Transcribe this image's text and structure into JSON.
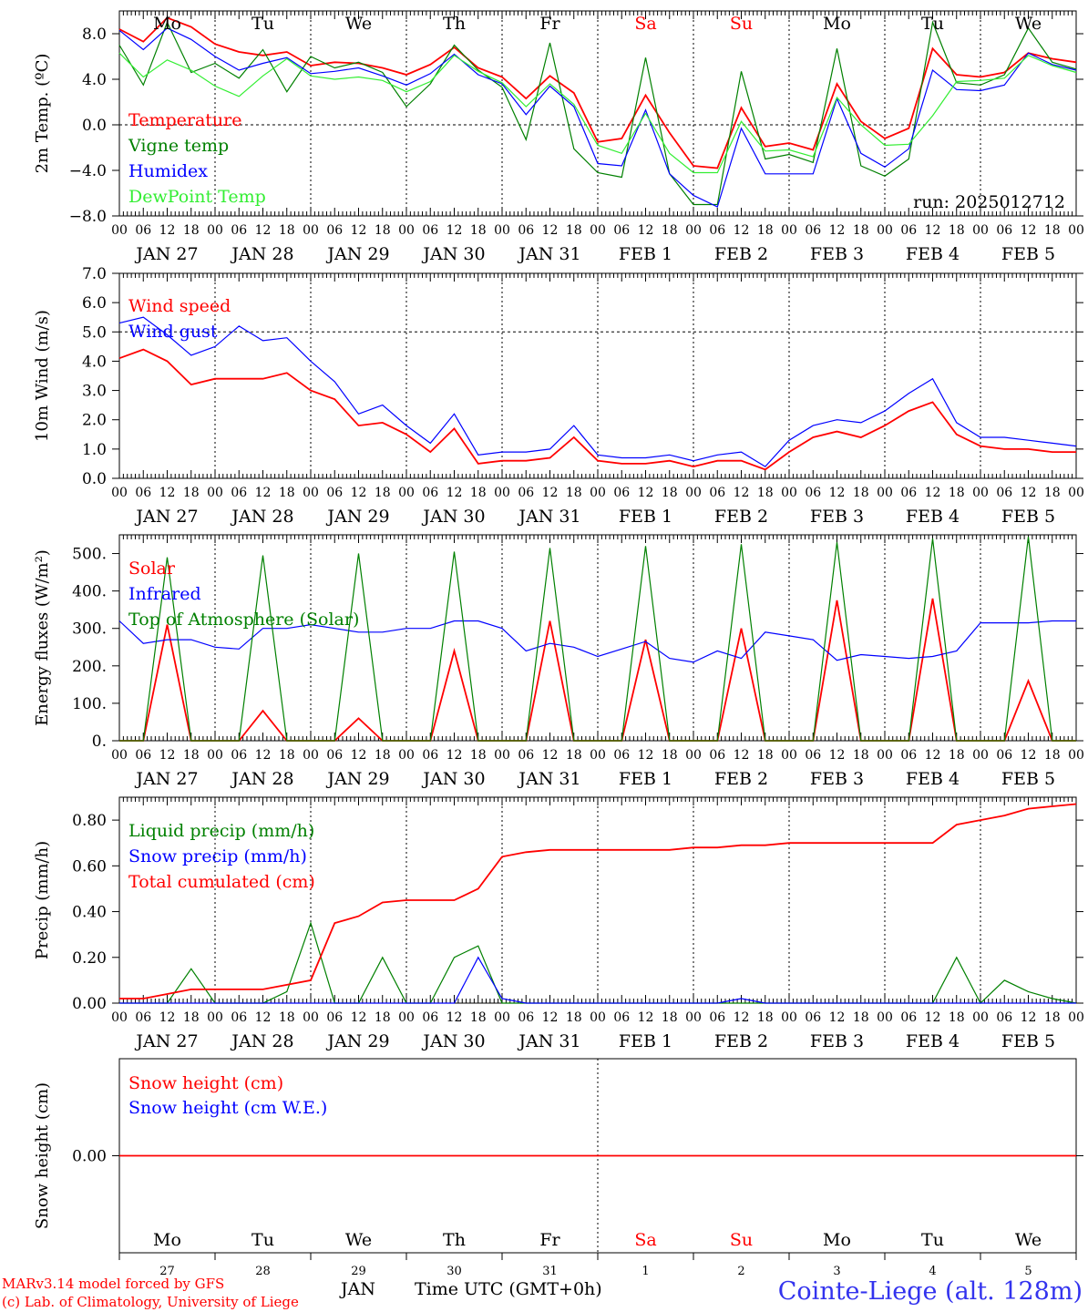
{
  "footer": {
    "credit_line1": "MARv3.14 model forced by GFS",
    "credit_line2": "(c) Lab. of Climatology, University of Liege",
    "station": "Cointe-Liege (alt. 128m)",
    "x_axis_title": "Time UTC (GMT+0h)",
    "month_label": "JAN"
  },
  "colors": {
    "red": "#ff0000",
    "green": "#008000",
    "blue": "#0000ff",
    "lightgreen": "#33ee33",
    "weekend": "#ff0000"
  },
  "days": {
    "weekday_labels": [
      "Mo",
      "Tu",
      "We",
      "Th",
      "Fr",
      "Sa",
      "Su",
      "Mo",
      "Tu",
      "We"
    ],
    "weekend_flags": [
      false,
      false,
      false,
      false,
      false,
      true,
      true,
      false,
      false,
      false
    ],
    "date_labels": [
      "JAN 27",
      "JAN 28",
      "JAN 29",
      "JAN 30",
      "JAN 31",
      "FEB  1",
      "FEB  2",
      "FEB  3",
      "FEB  4",
      "FEB  5"
    ],
    "day_numbers": [
      "27",
      "28",
      "29",
      "30",
      "31",
      "1",
      "2",
      "3",
      "4",
      "5"
    ],
    "hour_ticks": [
      "00",
      "06",
      "12",
      "18"
    ],
    "final_tick": "00"
  },
  "chart_data": [
    {
      "type": "line",
      "ylabel": "2m Temp. (ºC)",
      "ylim": [
        -8,
        10
      ],
      "yticks": [
        "8.0",
        "4.0",
        "0.0",
        "−4.0",
        "−8.0"
      ],
      "ytick_values": [
        8,
        4,
        0,
        -4,
        -8
      ],
      "reference_line": 0,
      "annotation": "run: 2025012712",
      "weekday_header": true,
      "x_hours": [
        0,
        6,
        12,
        18,
        24,
        30,
        36,
        42,
        48,
        54,
        60,
        66,
        72,
        78,
        84,
        90,
        96,
        102,
        108,
        114,
        120,
        126,
        132,
        138,
        144,
        150,
        156,
        162,
        168,
        174,
        180,
        186,
        192,
        198,
        204,
        210,
        216,
        222,
        228,
        234,
        240
      ],
      "series": [
        {
          "name": "Temperature",
          "color": "red",
          "values": [
            8.4,
            7.3,
            9.4,
            8.6,
            7.1,
            6.4,
            6.1,
            6.4,
            5.2,
            5.5,
            5.4,
            5.0,
            4.4,
            5.3,
            6.8,
            5.0,
            4.2,
            2.3,
            4.3,
            2.8,
            -1.5,
            -1.2,
            2.6,
            -0.7,
            -3.6,
            -3.8,
            1.5,
            -1.9,
            -1.6,
            -2.2,
            3.6,
            0.3,
            -1.2,
            -0.3,
            6.7,
            4.4,
            4.2,
            4.6,
            6.3,
            5.8,
            5.5
          ]
        },
        {
          "name": "Vigne temp",
          "color": "green",
          "values": [
            7.0,
            3.5,
            9.0,
            4.6,
            5.4,
            4.1,
            6.6,
            2.9,
            6.0,
            5.0,
            5.5,
            4.6,
            1.6,
            3.6,
            7.0,
            4.8,
            3.3,
            -1.3,
            7.2,
            -2.1,
            -4.2,
            -4.6,
            5.9,
            -4.3,
            -7.0,
            -7.0,
            4.7,
            -3.0,
            -2.6,
            -3.3,
            6.7,
            -3.6,
            -4.5,
            -3.0,
            9.0,
            3.7,
            3.5,
            4.4,
            8.5,
            5.5,
            4.9
          ]
        },
        {
          "name": "Humidex",
          "color": "blue",
          "values": [
            8.3,
            6.6,
            8.5,
            7.5,
            6.0,
            4.8,
            5.4,
            5.9,
            4.5,
            4.7,
            5.0,
            4.3,
            3.5,
            4.5,
            6.2,
            4.4,
            3.6,
            0.9,
            3.4,
            1.6,
            -3.4,
            -3.6,
            1.3,
            -4.3,
            -6.2,
            -7.2,
            -0.3,
            -4.3,
            -4.3,
            -4.3,
            2.3,
            -2.5,
            -3.7,
            -2.1,
            4.8,
            3.1,
            3.0,
            3.5,
            6.3,
            5.3,
            4.8
          ]
        },
        {
          "name": "DewPoint Temp",
          "color": "lightgreen",
          "values": [
            6.3,
            4.2,
            5.7,
            4.8,
            3.4,
            2.5,
            4.3,
            5.8,
            4.3,
            4.0,
            4.2,
            3.9,
            2.9,
            3.8,
            6.1,
            4.7,
            3.7,
            1.6,
            3.6,
            1.8,
            -1.8,
            -2.5,
            1.0,
            -2.5,
            -4.2,
            -4.2,
            0.3,
            -2.3,
            -2.2,
            -2.8,
            2.4,
            0.0,
            -1.8,
            -1.7,
            0.8,
            3.8,
            3.9,
            4.1,
            6.1,
            5.2,
            4.6
          ]
        }
      ]
    },
    {
      "type": "line",
      "ylabel": "10m Wind (m/s)",
      "ylim": [
        0,
        7
      ],
      "yticks": [
        "7.0",
        "6.0",
        "5.0",
        "4.0",
        "3.0",
        "2.0",
        "1.0",
        "0.0"
      ],
      "ytick_values": [
        7,
        6,
        5,
        4,
        3,
        2,
        1,
        0
      ],
      "reference_line": 5,
      "x_hours": [
        0,
        6,
        12,
        18,
        24,
        30,
        36,
        42,
        48,
        54,
        60,
        66,
        72,
        78,
        84,
        90,
        96,
        102,
        108,
        114,
        120,
        126,
        132,
        138,
        144,
        150,
        156,
        162,
        168,
        174,
        180,
        186,
        192,
        198,
        204,
        210,
        216,
        222,
        228,
        234,
        240
      ],
      "series": [
        {
          "name": "Wind speed",
          "color": "red",
          "values": [
            4.1,
            4.4,
            4.0,
            3.2,
            3.4,
            3.4,
            3.4,
            3.6,
            3.0,
            2.7,
            1.8,
            1.9,
            1.5,
            0.9,
            1.7,
            0.5,
            0.6,
            0.6,
            0.7,
            1.4,
            0.6,
            0.5,
            0.5,
            0.6,
            0.4,
            0.6,
            0.6,
            0.3,
            0.9,
            1.4,
            1.6,
            1.4,
            1.8,
            2.3,
            2.6,
            1.5,
            1.1,
            1.0,
            1.0,
            0.9,
            0.9
          ]
        },
        {
          "name": "Wind gust",
          "color": "blue",
          "values": [
            5.3,
            5.5,
            4.9,
            4.2,
            4.5,
            5.2,
            4.7,
            4.8,
            4.0,
            3.3,
            2.2,
            2.5,
            1.8,
            1.2,
            2.2,
            0.8,
            0.9,
            0.9,
            1.0,
            1.8,
            0.8,
            0.7,
            0.7,
            0.8,
            0.6,
            0.8,
            0.9,
            0.4,
            1.3,
            1.8,
            2.0,
            1.9,
            2.3,
            2.9,
            3.4,
            1.9,
            1.4,
            1.4,
            1.3,
            1.2,
            1.1
          ]
        }
      ]
    },
    {
      "type": "line",
      "ylabel": "Energy fluxes (W/m²)",
      "ylim": [
        0,
        550
      ],
      "yticks": [
        "500.",
        "400.",
        "300.",
        "200.",
        "100.",
        "0."
      ],
      "ytick_values": [
        500,
        400,
        300,
        200,
        100,
        0
      ],
      "x_hours": [
        0,
        6,
        12,
        18,
        24,
        30,
        36,
        42,
        48,
        54,
        60,
        66,
        72,
        78,
        84,
        90,
        96,
        102,
        108,
        114,
        120,
        126,
        132,
        138,
        144,
        150,
        156,
        162,
        168,
        174,
        180,
        186,
        192,
        198,
        204,
        210,
        216,
        222,
        228,
        234,
        240
      ],
      "series": [
        {
          "name": "Solar",
          "color": "red",
          "values": [
            0,
            0,
            310,
            0,
            0,
            0,
            80,
            0,
            0,
            0,
            60,
            0,
            0,
            0,
            240,
            0,
            0,
            0,
            320,
            0,
            0,
            0,
            270,
            0,
            0,
            0,
            300,
            0,
            0,
            0,
            375,
            0,
            0,
            0,
            380,
            0,
            0,
            0,
            160,
            0,
            0
          ]
        },
        {
          "name": "Infrared",
          "color": "blue",
          "values": [
            320,
            260,
            270,
            270,
            250,
            245,
            300,
            300,
            310,
            300,
            290,
            290,
            300,
            300,
            320,
            320,
            300,
            240,
            260,
            250,
            225,
            245,
            265,
            220,
            210,
            240,
            220,
            290,
            280,
            270,
            215,
            230,
            225,
            220,
            225,
            240,
            315,
            315,
            315,
            320,
            320
          ]
        },
        {
          "name": "Top of Atmosphere (Solar)",
          "color": "green",
          "values": [
            0,
            0,
            490,
            0,
            0,
            0,
            495,
            0,
            0,
            0,
            500,
            0,
            0,
            0,
            505,
            0,
            0,
            0,
            515,
            0,
            0,
            0,
            520,
            0,
            0,
            0,
            525,
            0,
            0,
            0,
            530,
            0,
            0,
            0,
            540,
            0,
            0,
            0,
            545,
            0,
            0
          ]
        }
      ]
    },
    {
      "type": "line",
      "ylabel": "Precip (mm/h)",
      "ylim": [
        0,
        0.9
      ],
      "yticks": [
        "0.80",
        "0.60",
        "0.40",
        "0.20",
        "0.00"
      ],
      "ytick_values": [
        0.8,
        0.6,
        0.4,
        0.2,
        0
      ],
      "x_hours": [
        0,
        6,
        12,
        18,
        24,
        30,
        36,
        42,
        48,
        54,
        60,
        66,
        72,
        78,
        84,
        90,
        96,
        102,
        108,
        114,
        120,
        126,
        132,
        138,
        144,
        150,
        156,
        162,
        168,
        174,
        180,
        186,
        192,
        198,
        204,
        210,
        216,
        222,
        228,
        234,
        240
      ],
      "series": [
        {
          "name": "Liquid precip (mm/h)",
          "color": "green",
          "values": [
            0.0,
            0.0,
            0.0,
            0.15,
            0.0,
            0.0,
            0.0,
            0.05,
            0.35,
            0.0,
            0.0,
            0.2,
            0.0,
            0.0,
            0.2,
            0.25,
            0.0,
            0.0,
            0.0,
            0.0,
            0.0,
            0.0,
            0.0,
            0.0,
            0.0,
            0.0,
            0.0,
            0.0,
            0.0,
            0.0,
            0.0,
            0.0,
            0.0,
            0.0,
            0.0,
            0.2,
            0.0,
            0.1,
            0.05,
            0.02,
            0.0
          ]
        },
        {
          "name": "Snow precip (mm/h)",
          "color": "blue",
          "values": [
            0.0,
            0.0,
            0.0,
            0.0,
            0.0,
            0.0,
            0.0,
            0.0,
            0.0,
            0.0,
            0.0,
            0.0,
            0.0,
            0.0,
            0.0,
            0.2,
            0.02,
            0.0,
            0.0,
            0.0,
            0.0,
            0.0,
            0.0,
            0.0,
            0.0,
            0.0,
            0.02,
            0.0,
            0.0,
            0.0,
            0.0,
            0.0,
            0.0,
            0.0,
            0.0,
            0.0,
            0.0,
            0.0,
            0.0,
            0.0,
            0.0
          ]
        },
        {
          "name": "Total cumulated (cm)",
          "color": "red",
          "values": [
            0.02,
            0.02,
            0.04,
            0.06,
            0.06,
            0.06,
            0.06,
            0.08,
            0.1,
            0.35,
            0.38,
            0.44,
            0.45,
            0.45,
            0.45,
            0.5,
            0.64,
            0.66,
            0.67,
            0.67,
            0.67,
            0.67,
            0.67,
            0.67,
            0.68,
            0.68,
            0.69,
            0.69,
            0.7,
            0.7,
            0.7,
            0.7,
            0.7,
            0.7,
            0.7,
            0.78,
            0.8,
            0.82,
            0.85,
            0.86,
            0.87
          ]
        }
      ]
    },
    {
      "type": "line",
      "ylabel": "Snow height (cm)",
      "ylim": [
        -0.1,
        0.1
      ],
      "yticks": [
        "0.00"
      ],
      "ytick_values": [
        0
      ],
      "bottom_weekday_row": true,
      "x_hours": [
        0,
        240
      ],
      "series": [
        {
          "name": "Snow height (cm)",
          "color": "red",
          "values": [
            0.0,
            0.0
          ]
        },
        {
          "name": "Snow height (cm W.E.)",
          "color": "blue",
          "values": []
        }
      ]
    }
  ]
}
